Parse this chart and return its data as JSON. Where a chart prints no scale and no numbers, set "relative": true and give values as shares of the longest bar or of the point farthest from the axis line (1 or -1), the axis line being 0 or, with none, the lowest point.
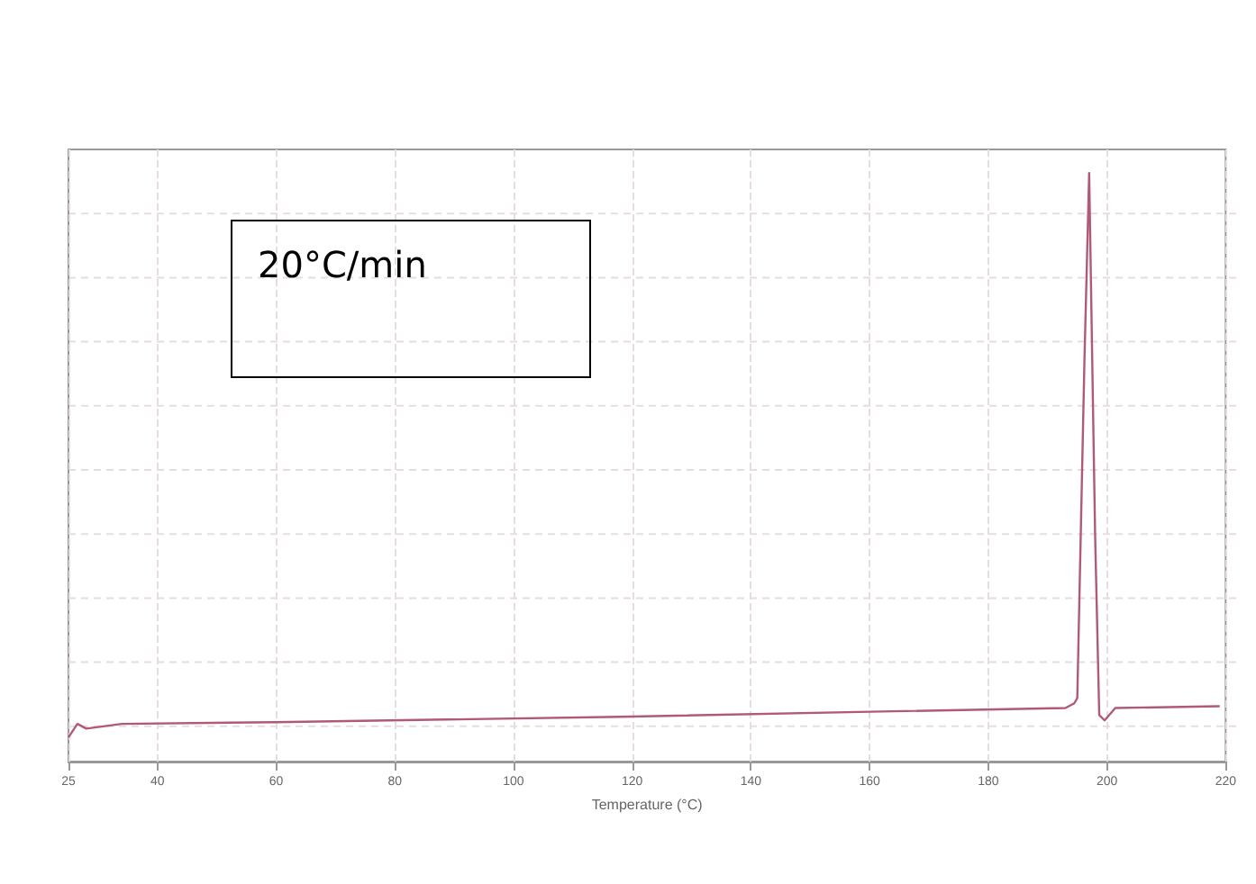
{
  "chart_data": {
    "type": "line",
    "relative": true,
    "xlabel": "Temperature (°C)",
    "annotations": [
      "20°C/min"
    ],
    "xlim": [
      25,
      220
    ],
    "xticks": [
      25,
      40,
      60,
      80,
      100,
      120,
      140,
      160,
      180,
      200,
      220
    ],
    "grid": true,
    "marker": "none",
    "line_style": "solid",
    "series": [
      {
        "color": "#b05a78",
        "x": [
          25,
          26.5,
          28,
          34,
          60,
          118,
          162,
          193,
          194.5,
          195,
          196.2,
          197,
          198,
          198.7,
          199.6,
          201.4,
          219
        ],
        "values": [
          0.041,
          0.064,
          0.056,
          0.064,
          0.067,
          0.076,
          0.085,
          0.091,
          0.099,
          0.108,
          0.68,
          1.0,
          0.386,
          0.079,
          0.07,
          0.091,
          0.094
        ]
      }
    ]
  }
}
